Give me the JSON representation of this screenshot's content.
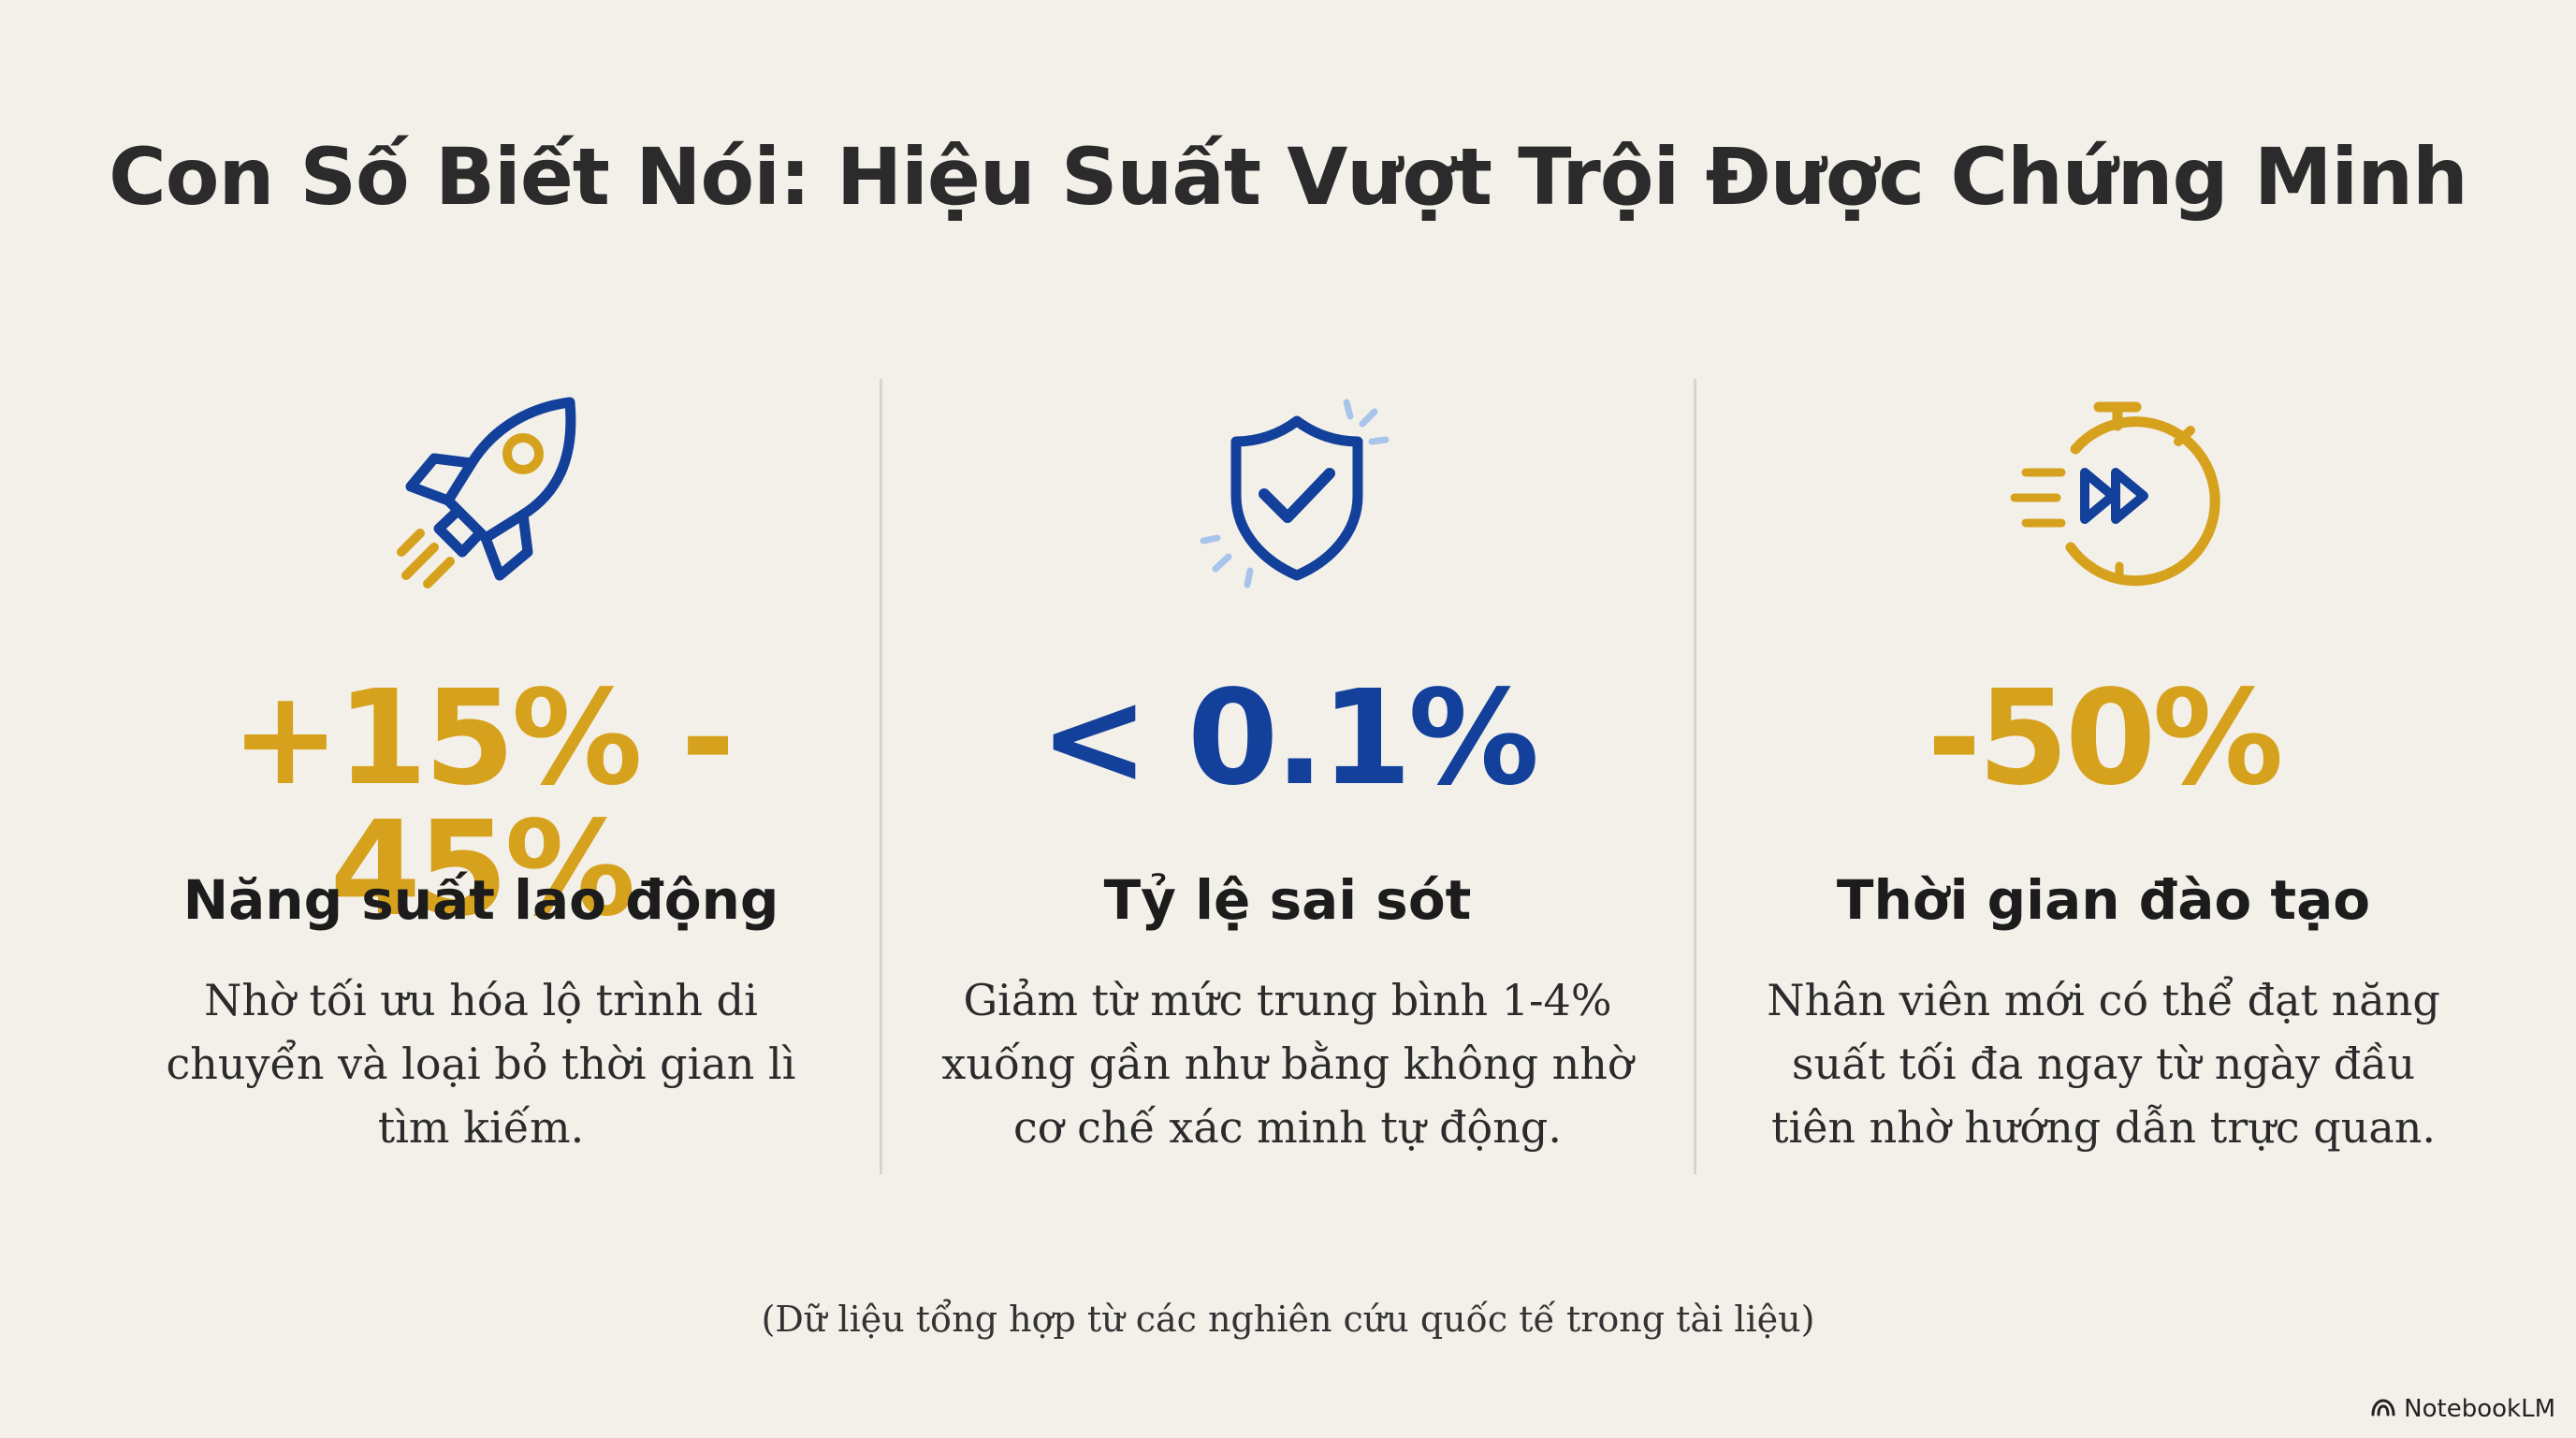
{
  "title": "Con Số Biết Nói: Hiệu Suất Vượt Trội Được Chứng Minh",
  "colors": {
    "gold": "#d6a21e",
    "blue": "#12409a",
    "text": "#2b2b2b"
  },
  "cards": [
    {
      "icon": "rocket-icon",
      "stat": "+15% - 45%",
      "stat_color": "gold",
      "label": "Năng suất lao động",
      "desc_lines": [
        "Nhờ tối ưu hóa lộ trình di",
        "chuyển và loại bỏ thời gian lì",
        "tìm kiếm."
      ]
    },
    {
      "icon": "shield-check-icon",
      "stat": "< 0.1%",
      "stat_color": "blue",
      "label": "Tỷ lệ sai sót",
      "desc_lines": [
        "Giảm từ mức trung bình 1-4%",
        "xuống gần như bằng không nhờ",
        "cơ chế xác minh tự động."
      ]
    },
    {
      "icon": "stopwatch-fast-forward-icon",
      "stat": "-50%",
      "stat_color": "gold",
      "label": "Thời gian đào tạo",
      "desc_lines": [
        "Nhân viên mới có thể đạt năng",
        "suất tối đa ngay từ ngày đầu",
        "tiên nhờ hướng dẫn trực quan."
      ]
    }
  ],
  "footnote": "(Dữ liệu tổng hợp từ các nghiên cứu quốc tế trong tài liệu)",
  "brand": "NotebookLM"
}
